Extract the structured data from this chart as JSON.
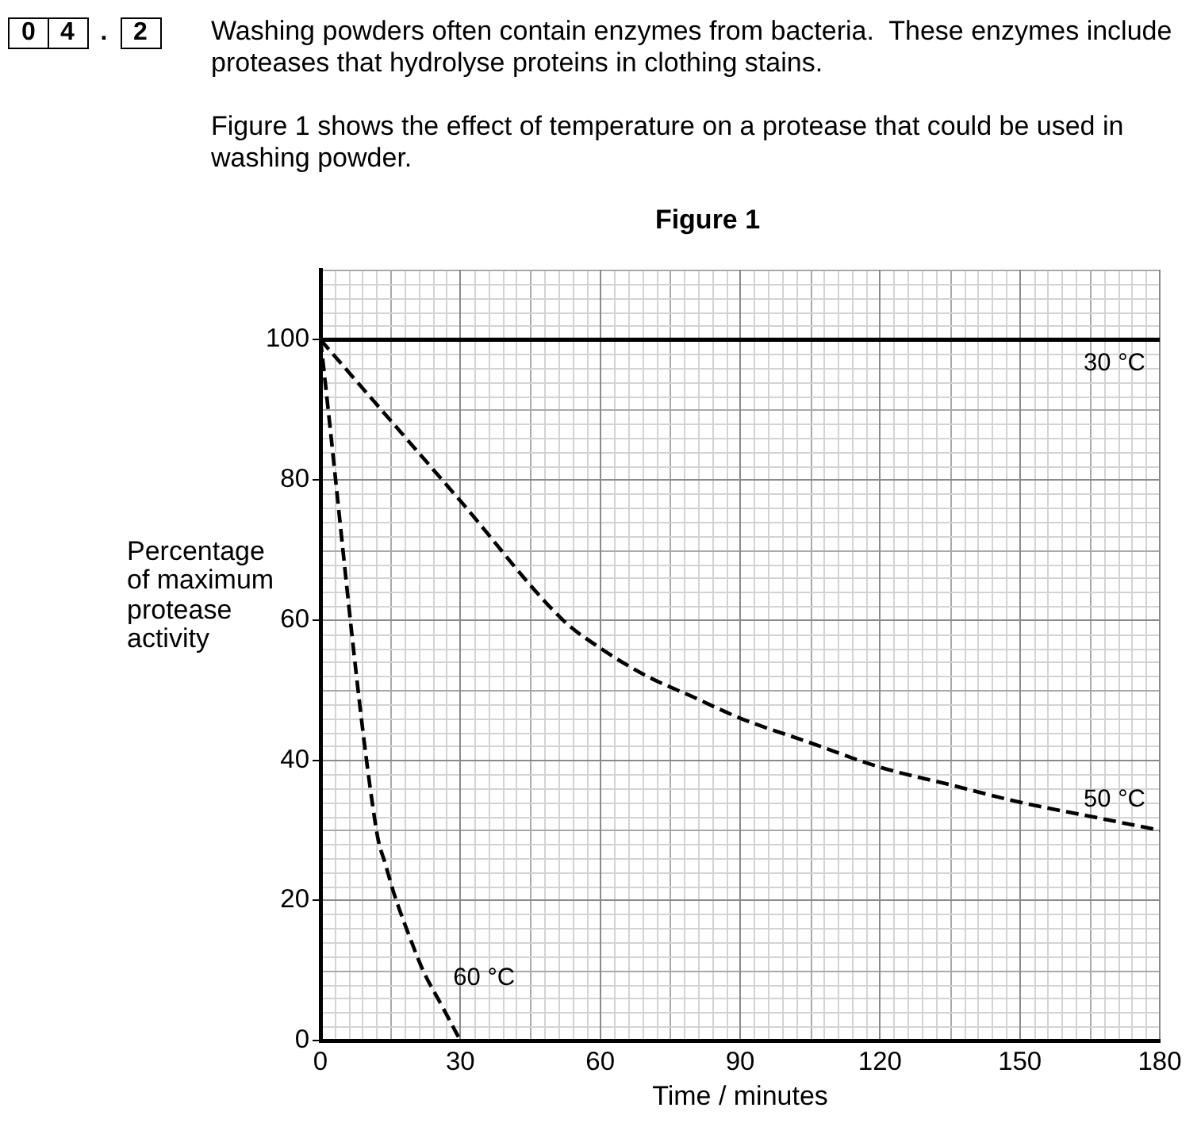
{
  "chart_data": {
    "type": "line",
    "title": "Figure 1",
    "xlabel": "Time / minutes",
    "ylabel": "Percentage of maximum protease activity",
    "annotations": [
      "0 4 . 2",
      "Washing powders often contain enzymes from bacteria.  These enzymes include proteases that hydrolyse proteins in clothing stains.",
      "Figure 1 shows the effect of temperature on a protease that could be used in washing powder."
    ],
    "xlim": [
      0,
      180
    ],
    "xticks": [
      0,
      30,
      60,
      90,
      120,
      150,
      180
    ],
    "ylim": [
      0,
      110
    ],
    "yticks": [
      0,
      20,
      40,
      60,
      80,
      100
    ],
    "grid": true,
    "legend": false,
    "marker": "none",
    "series": [
      {
        "name": "30 °C",
        "color": "#000000",
        "line_style": "solid",
        "x": [
          0,
          180
        ],
        "values": [
          100,
          100
        ]
      },
      {
        "name": "50 °C",
        "color": "#000000",
        "line_style": "dashed",
        "x": [
          0,
          30,
          52,
          60,
          70,
          80,
          90,
          105,
          120,
          135,
          150,
          165,
          180
        ],
        "values": [
          100,
          77,
          60,
          56,
          52,
          49,
          46,
          42.5,
          39,
          36.5,
          34,
          32,
          30
        ]
      },
      {
        "name": "60 °C",
        "color": "#000000",
        "line_style": "dashed",
        "x": [
          0,
          12,
          14,
          16,
          19,
          22,
          26,
          30
        ],
        "values": [
          100,
          30,
          25,
          20.5,
          15,
          10,
          5,
          0
        ]
      }
    ]
  }
}
